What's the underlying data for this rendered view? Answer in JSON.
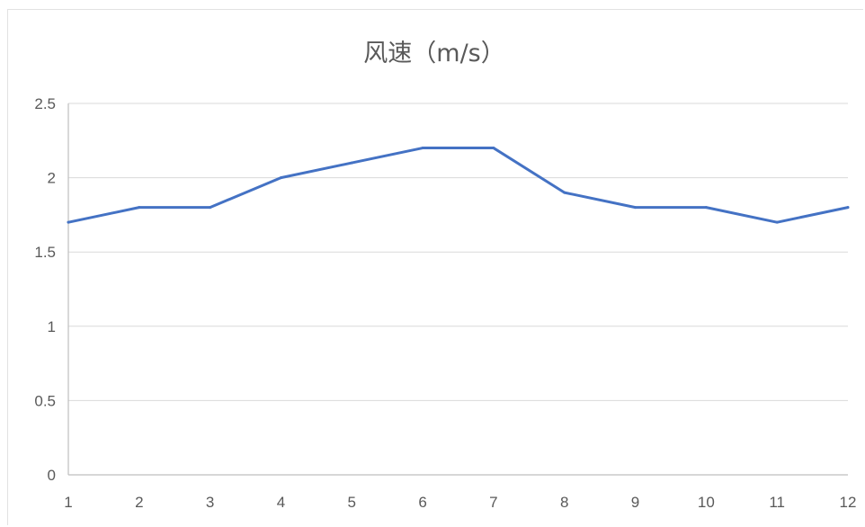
{
  "chart_data": {
    "type": "line",
    "title": "风速（m/s）",
    "xlabel": "",
    "ylabel": "",
    "categories": [
      "1",
      "2",
      "3",
      "4",
      "5",
      "6",
      "7",
      "8",
      "9",
      "10",
      "11",
      "12"
    ],
    "series": [
      {
        "values": [
          1.7,
          1.8,
          1.8,
          2.0,
          2.1,
          2.2,
          2.2,
          1.9,
          1.8,
          1.8,
          1.7,
          1.8
        ],
        "color": "#4472c4"
      }
    ],
    "ylim": [
      0,
      2.5
    ],
    "yticks": [
      "0",
      "0.5",
      "1",
      "1.5",
      "2",
      "2.5"
    ],
    "grid": true,
    "legend": "none"
  }
}
